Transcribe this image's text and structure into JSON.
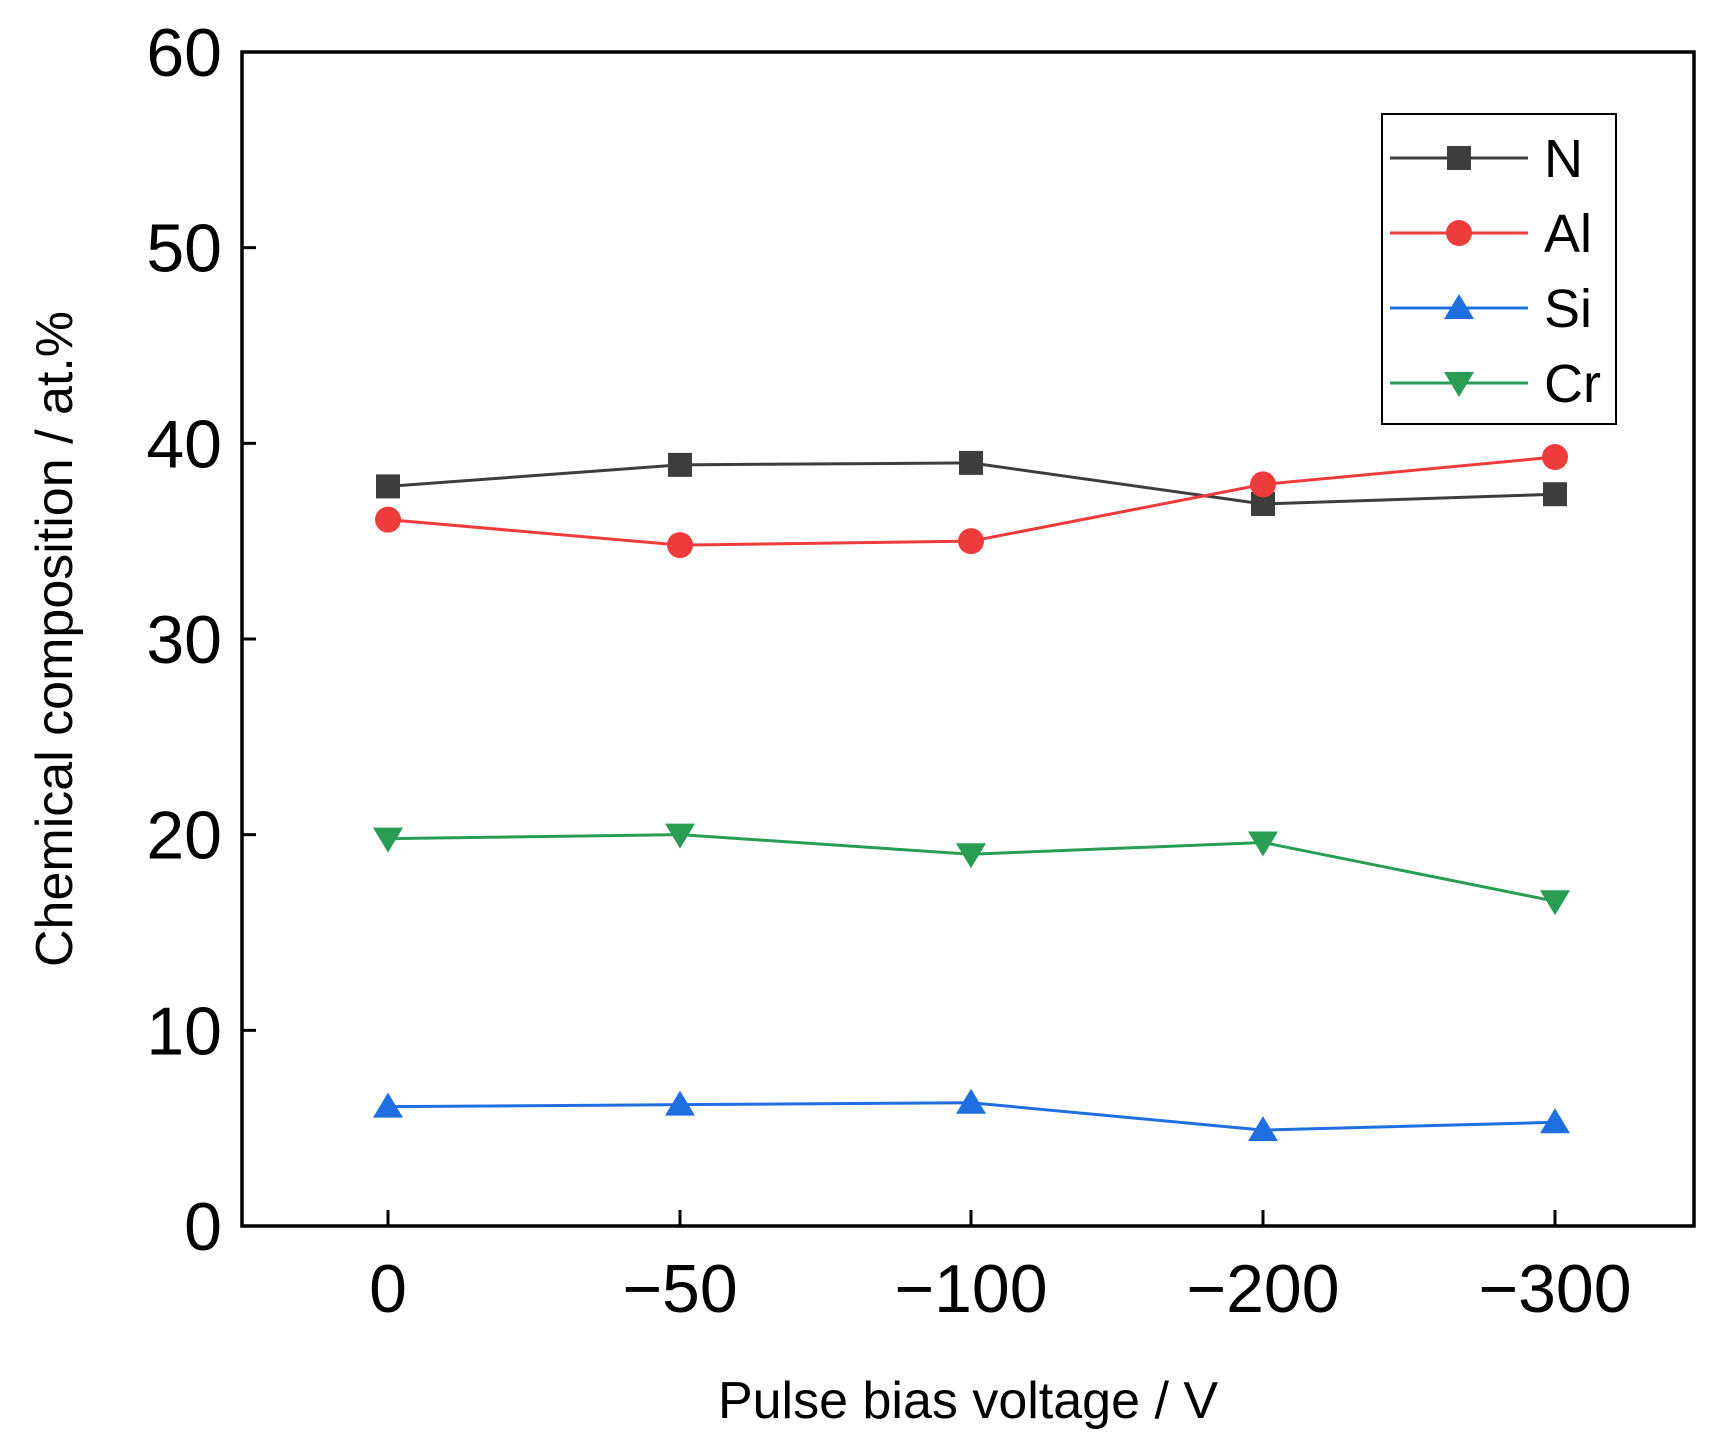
{
  "chart_data": {
    "type": "line",
    "title": "",
    "xlabel": "Pulse bias voltage / V",
    "ylabel": "Chemical composition / at.%",
    "categories": [
      "0",
      "−50",
      "−100",
      "−200",
      "−300"
    ],
    "ylim": [
      0,
      60
    ],
    "yticks": [
      0,
      10,
      20,
      30,
      40,
      50,
      60
    ],
    "ytick_labels": [
      "0",
      "10",
      "20",
      "30",
      "40",
      "50",
      "60"
    ],
    "grid": false,
    "legend_position": "top-right",
    "series": [
      {
        "name": "N",
        "marker": "square",
        "color": "#3d3d3d",
        "values": [
          37.8,
          38.9,
          39.0,
          36.9,
          37.4
        ]
      },
      {
        "name": "Al",
        "marker": "circle",
        "color": "#ee3b3b",
        "values": [
          36.1,
          34.8,
          35.0,
          37.9,
          39.3
        ]
      },
      {
        "name": "Si",
        "marker": "triangle-up",
        "color": "#1f6fe0",
        "values": [
          6.1,
          6.2,
          6.3,
          4.9,
          5.3
        ]
      },
      {
        "name": "Cr",
        "marker": "triangle-down",
        "color": "#2a9d55",
        "values": [
          19.8,
          20.0,
          19.0,
          19.6,
          16.6
        ]
      }
    ]
  }
}
